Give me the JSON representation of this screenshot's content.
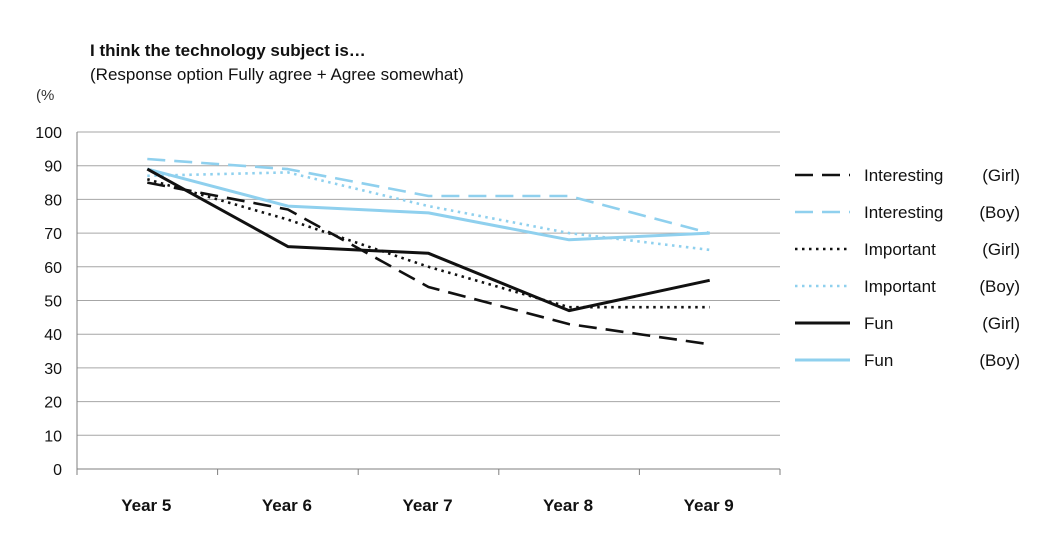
{
  "chart_data": {
    "type": "line",
    "title": "I think the technology subject is…",
    "subtitle": "(Response option Fully agree + Agree somewhat)",
    "ylabel": "(%",
    "xlabel": "",
    "ylim": [
      0,
      100
    ],
    "yticks": [
      0,
      10,
      20,
      30,
      40,
      50,
      60,
      70,
      80,
      90,
      100
    ],
    "grid": true,
    "legend_position": "right",
    "categories": [
      "Year 5",
      "Year 6",
      "Year 7",
      "Year 8",
      "Year 9"
    ],
    "series": [
      {
        "name": "Interesting",
        "group": "(Girl)",
        "color": "#111111",
        "style": "dashed",
        "values": [
          85,
          77,
          54,
          43,
          37
        ]
      },
      {
        "name": "Interesting",
        "group": "(Boy)",
        "color": "#8fd0ee",
        "style": "dashed",
        "values": [
          92,
          89,
          81,
          81,
          70
        ]
      },
      {
        "name": "Important",
        "group": "(Girl)",
        "color": "#111111",
        "style": "dotted",
        "values": [
          86,
          74,
          60,
          48,
          48
        ]
      },
      {
        "name": "Important",
        "group": "(Boy)",
        "color": "#8fd0ee",
        "style": "dotted",
        "values": [
          87,
          88,
          78,
          70,
          65
        ]
      },
      {
        "name": "Fun",
        "group": "(Girl)",
        "color": "#111111",
        "style": "solid",
        "values": [
          89,
          66,
          64,
          47,
          56
        ]
      },
      {
        "name": "Fun",
        "group": "(Boy)",
        "color": "#8fd0ee",
        "style": "solid",
        "values": [
          89,
          78,
          76,
          68,
          70
        ]
      }
    ]
  }
}
